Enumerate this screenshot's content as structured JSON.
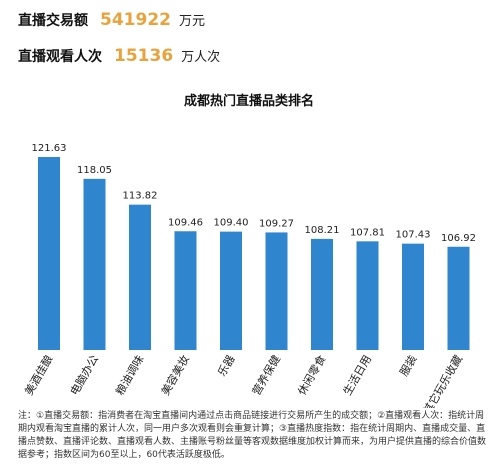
{
  "stats": [
    {
      "label": "直播交易额",
      "value": "541922",
      "unit": "万元"
    },
    {
      "label": "直播观看人次",
      "value": "15136",
      "unit": "万人次"
    }
  ],
  "colors": {
    "bar": "#2f86cf",
    "accent": "#e8a33d"
  },
  "chart_data": {
    "type": "bar",
    "title": "成都热门直播品类排名",
    "categories": [
      "美酒佳酿",
      "电脑办公",
      "粮油调味",
      "美容美妆",
      "乐器",
      "营养保健",
      "休闲零食",
      "生活日用",
      "服装",
      "其它玩乐收藏"
    ],
    "values": [
      121.63,
      118.05,
      113.82,
      109.46,
      109.4,
      109.27,
      108.21,
      107.81,
      107.43,
      106.92
    ],
    "value_labels": [
      "121.63",
      "118.05",
      "113.82",
      "109.46",
      "109.40",
      "109.27",
      "108.21",
      "107.81",
      "107.43",
      "106.92"
    ],
    "xlabel": "",
    "ylabel": "",
    "ylim": [
      90,
      125
    ],
    "grid": false,
    "legend": "none"
  },
  "footnote": "注：①直播交易额：指消费者在淘宝直播间内通过点击商品链接进行交易所产生的成交额；②直播观看人次：指统计周期内观看淘宝直播的累计人次，同一用户多次观看则会重复计算；③直播热度指数：指在统计周期内、直播成交量、直播点赞数、直播评论数、直播观看人数、主播账号粉丝量等客观数据维度加权计算而来，为用户提供直播的综合价值数据参考；指数区间为60至以上，60代表活跃度极低。"
}
